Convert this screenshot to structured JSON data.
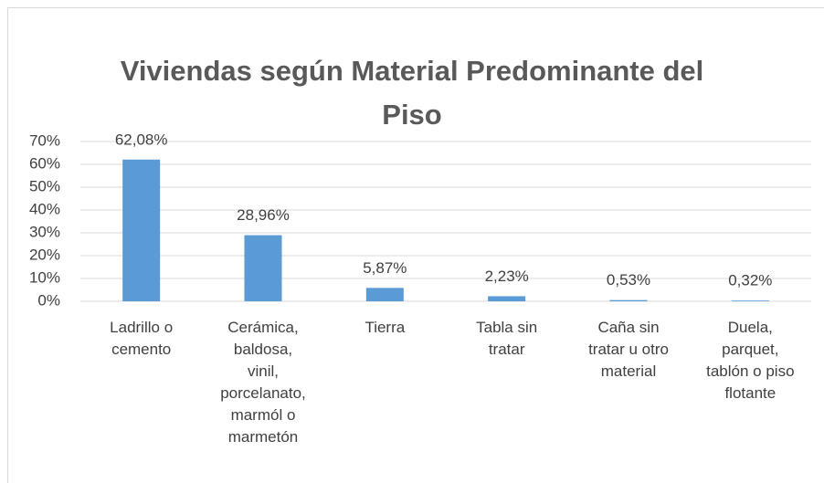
{
  "chart_data": {
    "type": "bar",
    "title": "Viviendas según Material Predominante del Piso",
    "categories": [
      "Ladrillo o cemento",
      "Cerámica, baldosa, vinil, porcelanato, marmól o marmetón",
      "Tierra",
      "Tabla sin tratar",
      "Caña sin tratar u otro material",
      "Duela, parquet, tablón o piso flotante"
    ],
    "values": [
      62.08,
      28.96,
      5.87,
      2.23,
      0.53,
      0.32
    ],
    "value_labels": [
      "62,08%",
      "28,96%",
      "5,87%",
      "2,23%",
      "0,53%",
      "0,32%"
    ],
    "color": "#5b9bd5",
    "ylim": [
      0,
      70
    ],
    "yticks": [
      {
        "value": 0,
        "label": "0%"
      },
      {
        "value": 10,
        "label": "10%"
      },
      {
        "value": 20,
        "label": "20%"
      },
      {
        "value": 30,
        "label": "30%"
      },
      {
        "value": 40,
        "label": "40%"
      },
      {
        "value": 50,
        "label": "50%"
      },
      {
        "value": 60,
        "label": "60%"
      },
      {
        "value": 70,
        "label": "70%"
      }
    ],
    "grid": true
  }
}
